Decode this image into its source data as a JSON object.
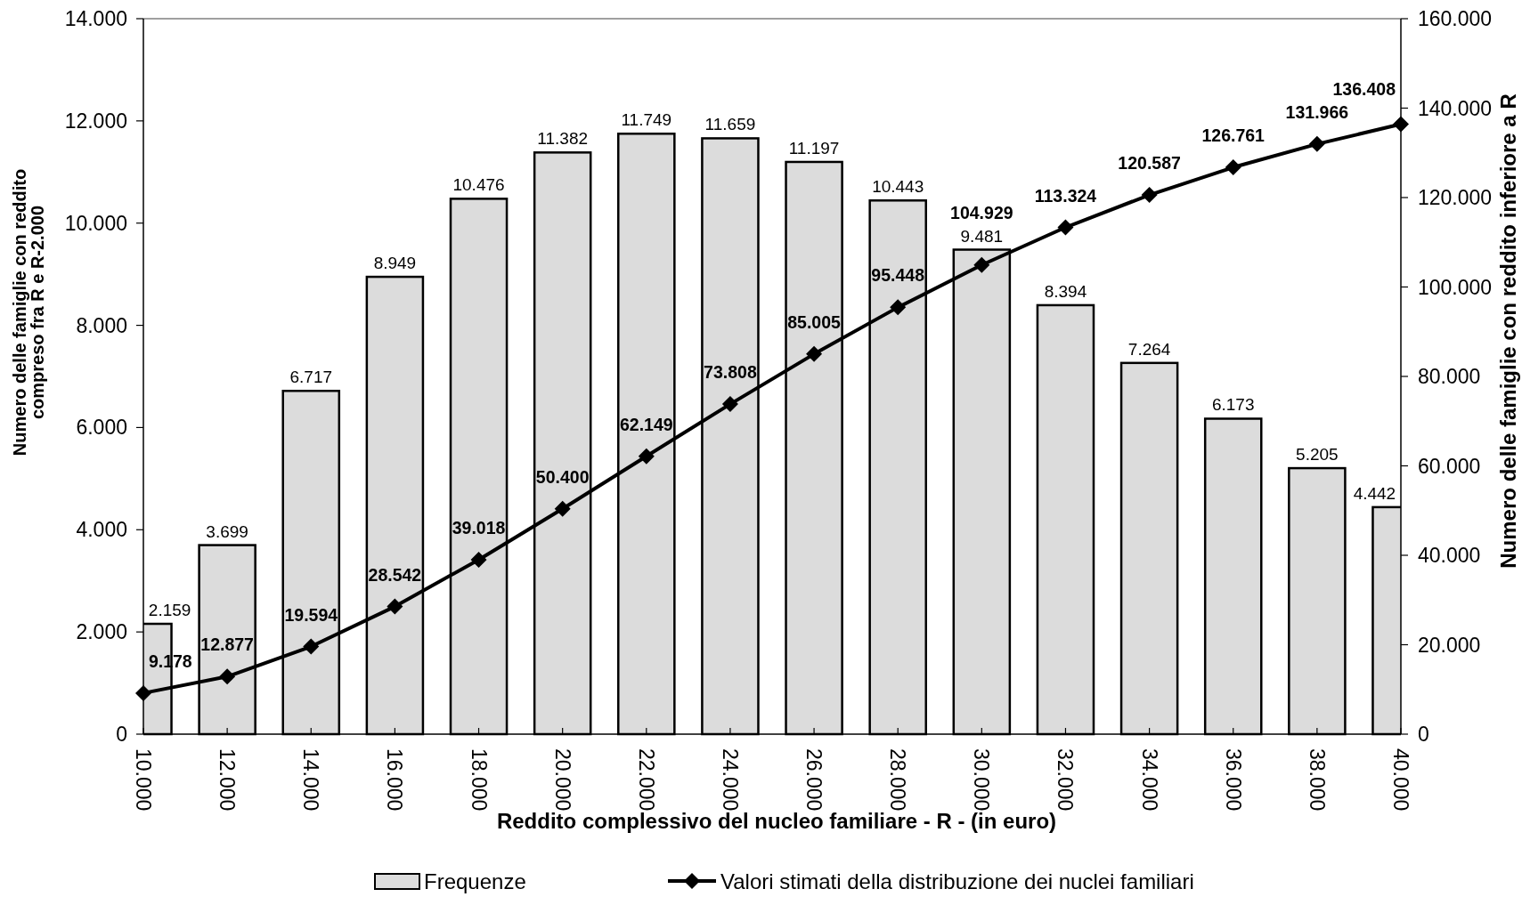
{
  "chart_data": {
    "type": "bar",
    "xlabel": "Reddito complessivo del nucleo familiare - R - (in euro)",
    "ylabel": "Numero delle famiglie con reddito\ncompreso fra R e R-2.000",
    "y2label": "Numero delle famiglie con reddito inferiore a R",
    "x": [
      10000,
      12000,
      14000,
      16000,
      18000,
      20000,
      22000,
      24000,
      26000,
      28000,
      30000,
      32000,
      34000,
      36000,
      38000,
      40000
    ],
    "xlim": [
      10000,
      40000
    ],
    "xticks": [
      {
        "value": 10000,
        "label": "10.000"
      },
      {
        "value": 12000,
        "label": "12.000"
      },
      {
        "value": 14000,
        "label": "14.000"
      },
      {
        "value": 16000,
        "label": "16.000"
      },
      {
        "value": 18000,
        "label": "18.000"
      },
      {
        "value": 20000,
        "label": "20.000"
      },
      {
        "value": 22000,
        "label": "22.000"
      },
      {
        "value": 24000,
        "label": "24.000"
      },
      {
        "value": 26000,
        "label": "26.000"
      },
      {
        "value": 28000,
        "label": "28.000"
      },
      {
        "value": 30000,
        "label": "30.000"
      },
      {
        "value": 32000,
        "label": "32.000"
      },
      {
        "value": 34000,
        "label": "34.000"
      },
      {
        "value": 36000,
        "label": "36.000"
      },
      {
        "value": 38000,
        "label": "38.000"
      },
      {
        "value": 40000,
        "label": "40.000"
      }
    ],
    "ylim": [
      0,
      14000
    ],
    "yticks": [
      0,
      {
        "value": 2000,
        "label": "2.000"
      },
      {
        "value": 4000,
        "label": "4.000"
      },
      {
        "value": 6000,
        "label": "6.000"
      },
      {
        "value": 8000,
        "label": "8.000"
      },
      {
        "value": 10000,
        "label": "10.000"
      },
      {
        "value": 12000,
        "label": "12.000"
      },
      {
        "value": 14000,
        "label": "14.000"
      }
    ],
    "y2lim": [
      0,
      160000
    ],
    "y2ticks": [
      0,
      {
        "value": 20000,
        "label": "20.000"
      },
      {
        "value": 40000,
        "label": "40.000"
      },
      {
        "value": 60000,
        "label": "60.000"
      },
      {
        "value": 80000,
        "label": "80.000"
      },
      {
        "value": 100000,
        "label": "100.000"
      },
      {
        "value": 120000,
        "label": "120.000"
      },
      {
        "value": 140000,
        "label": "140.000"
      },
      {
        "value": 160000,
        "label": "160.000"
      }
    ],
    "legend": "bottom",
    "series": [
      {
        "name": "Frequenze",
        "color": "#dcdcdc",
        "values": [
          2159,
          3699,
          6717,
          8949,
          10476,
          11382,
          11749,
          11659,
          11197,
          10443,
          9481,
          8394,
          7264,
          6173,
          5205,
          4442
        ],
        "value_labels": [
          "2.159",
          "3.699",
          "6.717",
          "8.949",
          "10.476",
          "11.382",
          "11.749",
          "11.659",
          "11.197",
          "10.443",
          "9.481",
          "8.394",
          "7.264",
          "6.173",
          "5.205",
          "4.442"
        ]
      },
      {
        "name": "Valori stimati della distribuzione dei nuclei familiari",
        "type": "line",
        "axis": "y2",
        "color": "#000000",
        "marker": "diamond",
        "values": [
          9178,
          12877,
          19594,
          28542,
          39018,
          50400,
          62149,
          73808,
          85005,
          95448,
          104929,
          113324,
          120587,
          126761,
          131966,
          136408
        ],
        "value_labels": [
          "9.178",
          "12.877",
          "19.594",
          "28.542",
          "39.018",
          "50.400",
          "62.149",
          "73.808",
          "85.005",
          "95.448",
          "104.929",
          "113.324",
          "120.587",
          "126.761",
          "131.966",
          "136.408"
        ]
      }
    ]
  }
}
